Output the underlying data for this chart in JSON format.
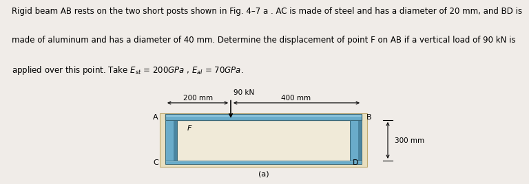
{
  "fig_bg": "#f0ece8",
  "diagram_bg": "#e8dfc0",
  "beam_color": "#6aacca",
  "beam_highlight": "#8cc4dc",
  "beam_dark": "#4a85a0",
  "inner_bg": "#f0ead8",
  "post_color": "#6aacca",
  "post_dark": "#4a85a0",
  "base_color": "#6aacca",
  "label_A": "A",
  "label_B": "B",
  "label_C": "C",
  "label_D": "D",
  "label_F": "F",
  "label_90kN": "90 kN",
  "label_200mm": "200 mm",
  "label_400mm": "400 mm",
  "label_300mm": "300 mm",
  "label_a": "(a)",
  "text_line1": "Rigid beam AB rests on the two short posts shown in Fig. 4–7 a . AC is made of steel and has a diameter of 20 mm, and BD is",
  "text_line2": "made of aluminum and has a diameter of 40 mm. Determine the displacement of point F on AB if a vertical load of 90 kN is",
  "text_line3": "applied over this point. Take $E_{st}$ = 200$GPa$ , $E_{al}$ = 70$GPa$.",
  "fontsize_text": 8.5,
  "fontsize_label": 8,
  "fontsize_dim": 7.5
}
